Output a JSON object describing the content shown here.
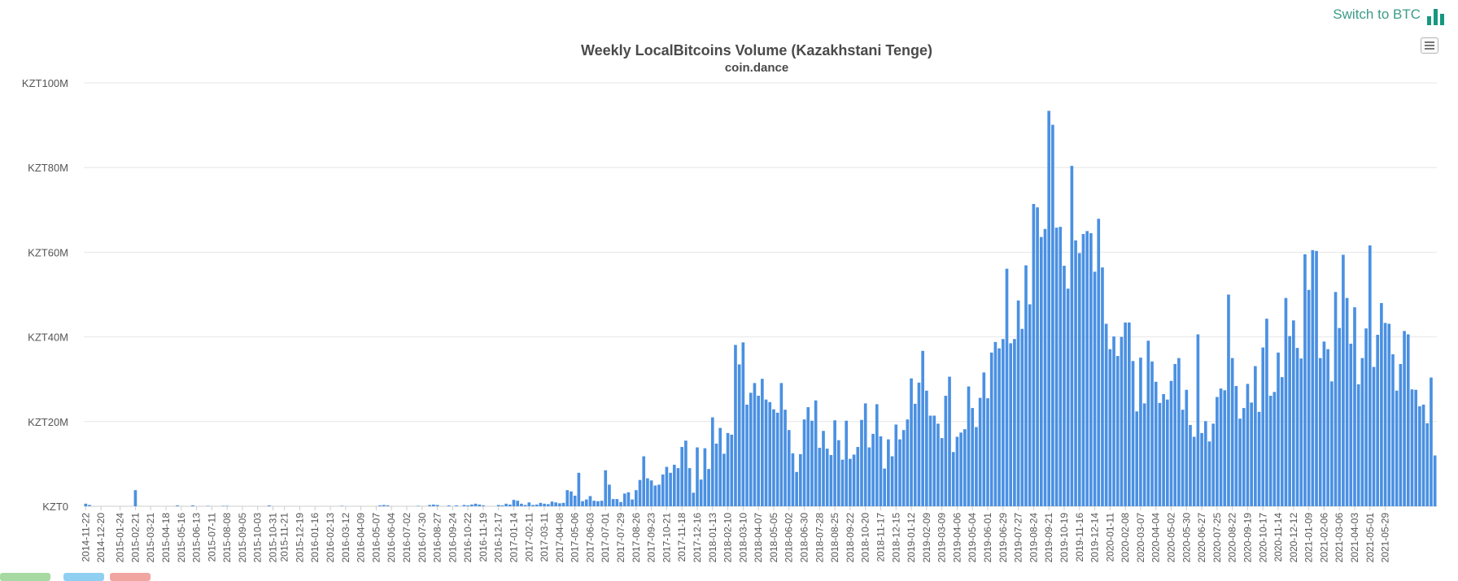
{
  "header": {
    "switch_label": "Switch to BTC",
    "switch_icon": "bar-chart-icon"
  },
  "colors": {
    "bar": "#4a90e2",
    "grid": "#e6e6e6",
    "accent": "#17977f"
  },
  "chart_data": {
    "type": "bar",
    "title": "Weekly LocalBitcoins Volume (Kazakhstani Tenge)",
    "subtitle": "coin.dance",
    "start_date": "2014-11-22",
    "ylim": [
      0,
      100000000
    ],
    "yticks": [
      {
        "value": 0,
        "label": "KZT0"
      },
      {
        "value": 20000000,
        "label": "KZT20M"
      },
      {
        "value": 40000000,
        "label": "KZT40M"
      },
      {
        "value": 60000000,
        "label": "KZT60M"
      },
      {
        "value": 80000000,
        "label": "KZT80M"
      },
      {
        "value": 100000000,
        "label": "KZT100M"
      }
    ],
    "xtick_labels": [
      "2014-11-22",
      "2014-12-20",
      "2015-01-24",
      "2015-02-21",
      "2015-03-21",
      "2015-04-18",
      "2015-05-16",
      "2015-06-13",
      "2015-07-11",
      "2015-08-08",
      "2015-09-05",
      "2015-10-03",
      "2015-10-31",
      "2015-11-21",
      "2015-12-19",
      "2016-01-16",
      "2016-02-13",
      "2016-03-12",
      "2016-04-09",
      "2016-05-07",
      "2016-06-04",
      "2016-07-02",
      "2016-07-30",
      "2016-08-27",
      "2016-09-24",
      "2016-10-22",
      "2016-11-19",
      "2016-12-17",
      "2017-01-14",
      "2017-02-11",
      "2017-03-11",
      "2017-04-08",
      "2017-05-06",
      "2017-06-03",
      "2017-07-01",
      "2017-07-29",
      "2017-08-26",
      "2017-09-23",
      "2017-10-21",
      "2017-11-18",
      "2017-12-16",
      "2018-01-13",
      "2018-02-10",
      "2018-03-10",
      "2018-04-07",
      "2018-05-05",
      "2018-06-02",
      "2018-06-30",
      "2018-07-28",
      "2018-08-25",
      "2018-09-22",
      "2018-10-20",
      "2018-11-17",
      "2018-12-15",
      "2019-01-12",
      "2019-02-09",
      "2019-03-09",
      "2019-04-06",
      "2019-05-04",
      "2019-06-01",
      "2019-06-29",
      "2019-07-27",
      "2019-08-24",
      "2019-09-21",
      "2019-10-19",
      "2019-11-16",
      "2019-12-14",
      "2020-01-11",
      "2020-02-08",
      "2020-03-07",
      "2020-04-04",
      "2020-05-02",
      "2020-05-30",
      "2020-06-27",
      "2020-07-25",
      "2020-08-22",
      "2020-09-19",
      "2020-10-17",
      "2020-11-14",
      "2020-12-12",
      "2021-01-09",
      "2021-02-06",
      "2021-03-06",
      "2021-04-03",
      "2021-05-01",
      "2021-05-29"
    ],
    "values_millions": [
      0.6,
      0.3,
      0,
      0,
      0,
      0,
      0,
      0,
      0,
      0,
      0,
      0,
      0,
      3.8,
      0,
      0,
      0,
      0,
      0,
      0,
      0,
      0,
      0,
      0,
      0.2,
      0,
      0,
      0,
      0.2,
      0,
      0,
      0,
      0.1,
      0,
      0,
      0,
      0.1,
      0.1,
      0,
      0,
      0,
      0,
      0,
      0,
      0,
      0,
      0,
      0,
      0.2,
      0,
      0,
      0,
      0,
      0,
      0,
      0,
      0,
      0,
      0,
      0,
      0,
      0,
      0,
      0,
      0,
      0,
      0,
      0.1,
      0,
      0,
      0,
      0,
      0,
      0,
      0,
      0,
      0,
      0.2,
      0.3,
      0.2,
      0,
      0,
      0,
      0,
      0,
      0,
      0,
      0.1,
      0,
      0,
      0.3,
      0.4,
      0.3,
      0,
      0,
      0.2,
      0,
      0.2,
      0,
      0.3,
      0.2,
      0.4,
      0.6,
      0.4,
      0.2,
      0,
      0,
      0,
      0.3,
      0.2,
      0.6,
      0.4,
      1.5,
      1.3,
      0.6,
      0.3,
      0.9,
      0.3,
      0.4,
      0.8,
      0.6,
      0.5,
      1.1,
      0.9,
      0.7,
      0.8,
      3.8,
      3.5,
      2.5,
      7.9,
      1.2,
      1.6,
      2.4,
      1.3,
      1.2,
      1.3,
      8.5,
      5.1,
      1.7,
      1.7,
      1.0,
      3.0,
      3.3,
      1.6,
      3.8,
      6.2,
      11.8,
      6.6,
      6.1,
      4.9,
      5.1,
      7.5,
      9.3,
      7.9,
      9.8,
      9.0,
      14.0,
      15.5,
      9.0,
      3.2,
      13.9,
      6.3,
      13.7,
      8.8,
      21.0,
      14.8,
      18.5,
      12.4,
      17.3,
      16.9,
      38.1,
      33.5,
      38.7,
      24.0,
      26.8,
      29.1,
      26.1,
      30.1,
      25.2,
      24.6,
      22.9,
      22.1,
      29.1,
      22.8,
      18.0,
      12.5,
      8.1,
      12.3,
      20.5,
      23.4,
      20.2,
      25.0,
      13.8,
      17.8,
      13.6,
      12.1,
      20.3,
      15.6,
      11.0,
      20.2,
      11.2,
      12.2,
      14.0,
      20.4,
      24.3,
      13.9,
      17.1,
      24.1,
      16.5,
      8.9,
      15.8,
      11.8,
      19.3,
      15.8,
      18.0,
      20.5,
      30.2,
      24.2,
      29.2,
      36.7,
      27.3,
      21.4,
      21.4,
      19.5,
      16.1,
      26.1,
      30.6,
      12.8,
      16.4,
      17.4,
      18.2,
      28.3,
      23.2,
      18.7,
      25.6,
      31.6,
      25.5,
      36.3,
      38.8,
      37.3,
      39.5,
      56.1,
      38.5,
      39.5,
      48.6,
      41.9,
      56.9,
      47.7,
      71.4,
      70.6,
      63.6,
      65.5,
      93.4,
      90.1,
      65.8,
      66.0,
      56.8,
      51.4,
      80.4,
      62.8,
      59.8,
      64.3,
      65.0,
      64.5,
      55.4,
      67.9,
      56.4,
      43.1,
      37.1,
      40.1,
      35.5,
      40.0,
      43.4,
      43.4,
      34.3,
      22.4,
      35.1,
      24.3,
      39.1,
      34.2,
      29.4,
      24.4,
      26.5,
      25.2,
      29.6,
      33.6,
      35.0,
      22.8,
      27.5,
      19.2,
      16.4,
      40.6,
      17.3,
      20.1,
      15.3,
      19.5,
      25.8,
      27.8,
      27.4,
      50.0,
      35.0,
      28.4,
      20.7,
      23.2,
      28.9,
      24.5,
      33.1,
      22.3,
      37.5,
      44.3,
      26.1,
      27.0,
      36.3,
      30.5,
      49.2,
      40.2,
      43.9,
      37.4,
      34.9,
      59.5,
      51.1,
      60.5,
      60.3,
      35.0,
      38.9,
      37.1,
      29.5,
      50.6,
      42.1,
      59.4,
      49.2,
      38.4,
      47.0,
      28.8,
      35.0,
      42.0,
      61.6,
      32.9,
      40.5,
      48.0,
      43.3,
      43.1,
      35.9,
      27.3,
      33.6,
      41.4,
      40.6,
      27.6,
      27.5,
      23.6,
      24.0,
      19.6,
      30.4,
      12.0
    ]
  }
}
